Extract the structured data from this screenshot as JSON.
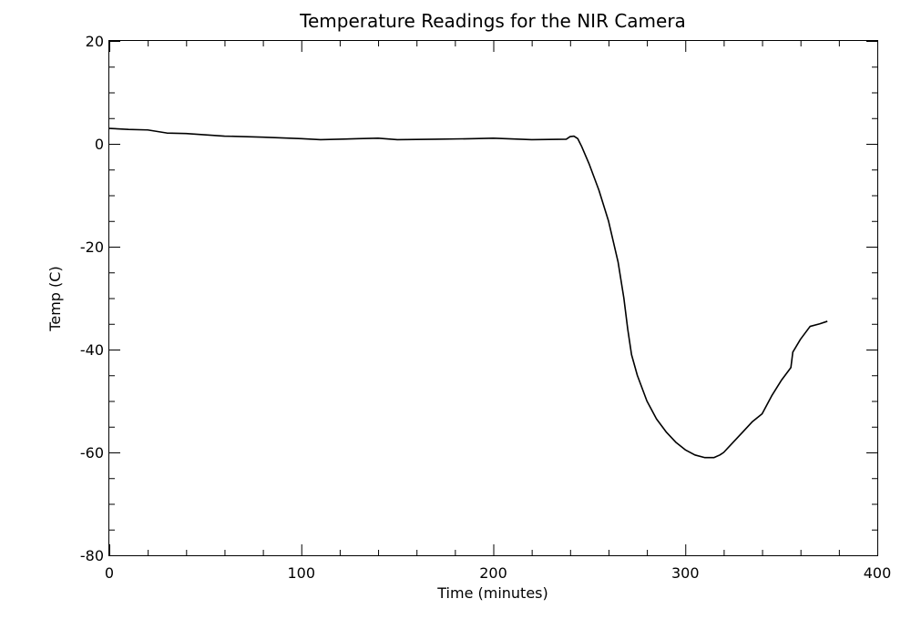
{
  "chart_data": {
    "type": "line",
    "title": "Temperature Readings for the NIR Camera",
    "xlabel": "Time (minutes)",
    "ylabel": "Temp (C)",
    "xlim": [
      0,
      400
    ],
    "ylim": [
      -80,
      20
    ],
    "x_major_ticks": [
      0,
      100,
      200,
      300,
      400
    ],
    "x_minor_step": 20,
    "y_major_ticks": [
      -80,
      -60,
      -40,
      -20,
      0,
      20
    ],
    "y_minor_step": 5,
    "grid": false,
    "series": [
      {
        "color": "#000000",
        "x": [
          0,
          10,
          20,
          30,
          40,
          60,
          80,
          100,
          110,
          130,
          140,
          150,
          170,
          190,
          200,
          220,
          238,
          240,
          242,
          244,
          246,
          250,
          255,
          260,
          265,
          268,
          270,
          272,
          275,
          280,
          285,
          290,
          295,
          300,
          305,
          310,
          315,
          318,
          320,
          325,
          330,
          335,
          340,
          345,
          350,
          354,
          355,
          356,
          360,
          365,
          370,
          374
        ],
        "values": [
          3,
          2.8,
          2.7,
          2.1,
          2,
          1.5,
          1.3,
          1,
          0.8,
          1,
          1.1,
          0.8,
          0.9,
          1,
          1.1,
          0.8,
          0.9,
          1.4,
          1.5,
          1,
          -0.5,
          -4,
          -9,
          -15,
          -23,
          -30,
          -36,
          -41,
          -45,
          -50,
          -53.5,
          -56,
          -58,
          -59.5,
          -60.5,
          -61,
          -61,
          -60.5,
          -60,
          -58,
          -56,
          -54,
          -52.5,
          -49,
          -46,
          -44,
          -43.5,
          -40.5,
          -38,
          -35.5,
          -35,
          -34.5
        ]
      }
    ]
  }
}
